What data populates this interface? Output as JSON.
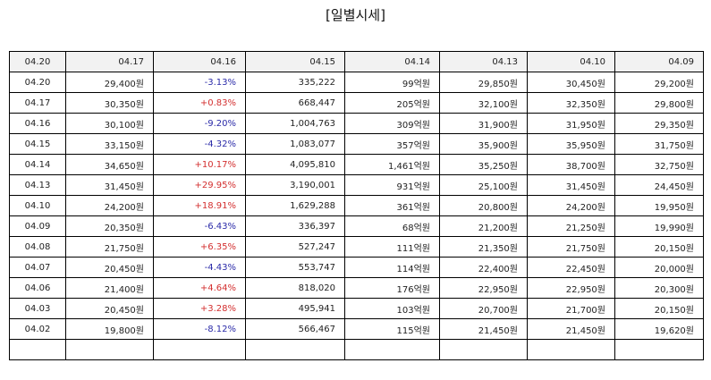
{
  "title": "[일별시세]",
  "colors": {
    "up": "#d32f2f",
    "down": "#2a2aa8",
    "header_bg": "#f2f2f2"
  },
  "columns": [
    "04.20",
    "04.17",
    "04.16",
    "04.15",
    "04.14",
    "04.13",
    "04.10",
    "04.09"
  ],
  "rows": [
    {
      "date": "04.20",
      "close": "29,400원",
      "change": "-3.13%",
      "dir": "down",
      "volume": "335,222",
      "amount": "99억원",
      "open": "29,850원",
      "high": "30,450원",
      "low": "29,200원"
    },
    {
      "date": "04.17",
      "close": "30,350원",
      "change": "+0.83%",
      "dir": "up",
      "volume": "668,447",
      "amount": "205억원",
      "open": "32,100원",
      "high": "32,350원",
      "low": "29,800원"
    },
    {
      "date": "04.16",
      "close": "30,100원",
      "change": "-9.20%",
      "dir": "down",
      "volume": "1,004,763",
      "amount": "309억원",
      "open": "31,900원",
      "high": "31,950원",
      "low": "29,350원"
    },
    {
      "date": "04.15",
      "close": "33,150원",
      "change": "-4.32%",
      "dir": "down",
      "volume": "1,083,077",
      "amount": "357억원",
      "open": "35,900원",
      "high": "35,950원",
      "low": "31,750원"
    },
    {
      "date": "04.14",
      "close": "34,650원",
      "change": "+10.17%",
      "dir": "up",
      "volume": "4,095,810",
      "amount": "1,461억원",
      "open": "35,250원",
      "high": "38,700원",
      "low": "32,750원"
    },
    {
      "date": "04.13",
      "close": "31,450원",
      "change": "+29.95%",
      "dir": "up",
      "volume": "3,190,001",
      "amount": "931억원",
      "open": "25,100원",
      "high": "31,450원",
      "low": "24,450원"
    },
    {
      "date": "04.10",
      "close": "24,200원",
      "change": "+18.91%",
      "dir": "up",
      "volume": "1,629,288",
      "amount": "361억원",
      "open": "20,800원",
      "high": "24,200원",
      "low": "19,950원"
    },
    {
      "date": "04.09",
      "close": "20,350원",
      "change": "-6.43%",
      "dir": "down",
      "volume": "336,397",
      "amount": "68억원",
      "open": "21,200원",
      "high": "21,250원",
      "low": "19,990원"
    },
    {
      "date": "04.08",
      "close": "21,750원",
      "change": "+6.35%",
      "dir": "up",
      "volume": "527,247",
      "amount": "111억원",
      "open": "21,350원",
      "high": "21,750원",
      "low": "20,150원"
    },
    {
      "date": "04.07",
      "close": "20,450원",
      "change": "-4.43%",
      "dir": "down",
      "volume": "553,747",
      "amount": "114억원",
      "open": "22,400원",
      "high": "22,450원",
      "low": "20,000원"
    },
    {
      "date": "04.06",
      "close": "21,400원",
      "change": "+4.64%",
      "dir": "up",
      "volume": "818,020",
      "amount": "176억원",
      "open": "22,950원",
      "high": "22,950원",
      "low": "20,300원"
    },
    {
      "date": "04.03",
      "close": "20,450원",
      "change": "+3.28%",
      "dir": "up",
      "volume": "495,941",
      "amount": "103억원",
      "open": "20,700원",
      "high": "21,700원",
      "low": "20,150원"
    },
    {
      "date": "04.02",
      "close": "19,800원",
      "change": "-8.12%",
      "dir": "down",
      "volume": "566,467",
      "amount": "115억원",
      "open": "21,450원",
      "high": "21,450원",
      "low": "19,620원"
    }
  ]
}
